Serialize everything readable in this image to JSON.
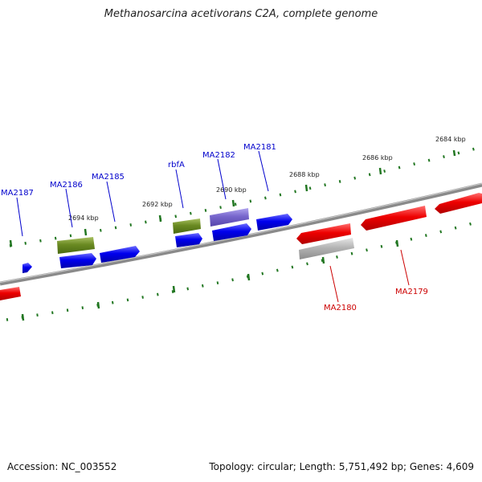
{
  "title": "Methanosarcina acetivorans C2A, complete genome",
  "footer": {
    "accession": "Accession: NC_003552",
    "summary": "Topology: circular; Length: 5,751,492 bp; Genes: 4,609"
  },
  "tick_labels": [
    "2684 kbp",
    "2686 kbp",
    "2688 kbp",
    "2690 kbp",
    "2692 kbp",
    "2694 kbp"
  ],
  "gene_labels": [
    "MA2187",
    "MA2186",
    "MA2185",
    "rbfA",
    "MA2182",
    "MA2181",
    "MA2180",
    "MA2179"
  ],
  "colors": {
    "forward_gene": "#0000ee",
    "reverse_gene": "#ee0000",
    "rna_gene": "#6a8a22",
    "pseudo_forward": "#7766cc",
    "pseudo_reverse": "#b0b0b0",
    "backbone": "#7a7a7a",
    "tick": "#227722",
    "label_forward": "#0000cc",
    "label_reverse": "#cc0000"
  }
}
